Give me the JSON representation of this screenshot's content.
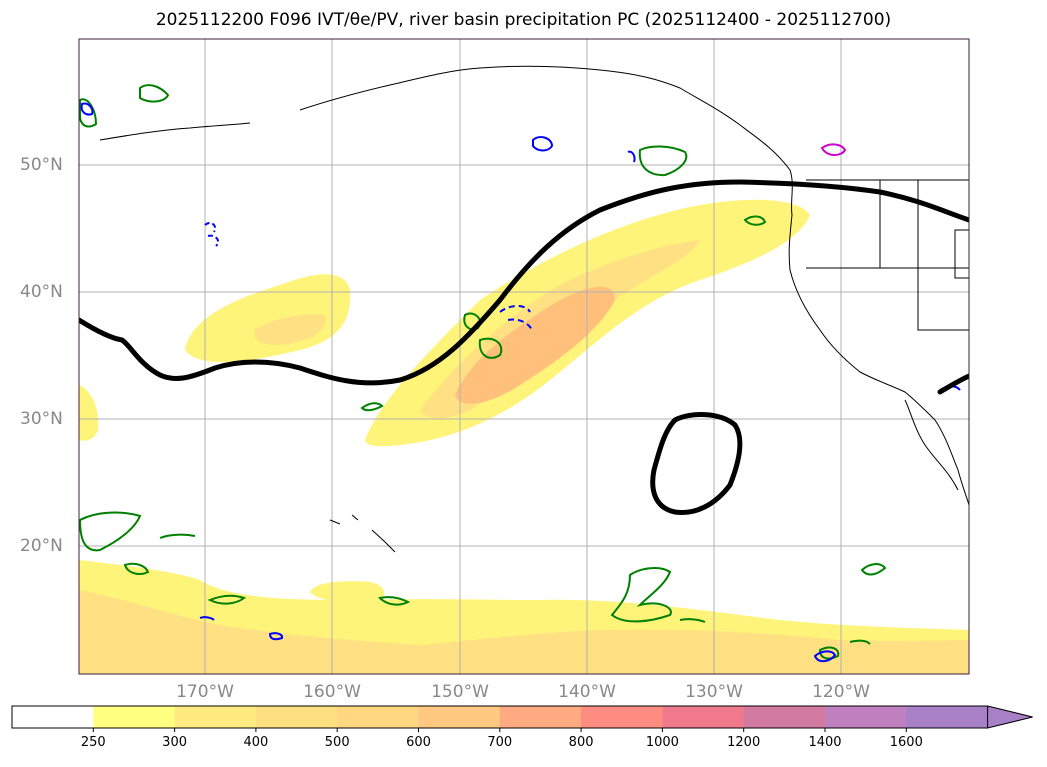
{
  "title": "2025112200 F096 IVT/θe/PV, river basin precipitation PC (2025112400 - 2025112700)",
  "latitude_labels": [
    "50°N",
    "40°N",
    "30°N",
    "20°N"
  ],
  "longitude_labels": [
    "170°W",
    "160°W",
    "150°W",
    "140°W",
    "130°W",
    "120°W"
  ],
  "colorbar": {
    "ticks": [
      "250",
      "300",
      "400",
      "500",
      "600",
      "700",
      "800",
      "1000",
      "1200",
      "1400",
      "1600"
    ],
    "colors": [
      "#ffffff",
      "#ffff80",
      "#ffeb80",
      "#ffe080",
      "#ffd780",
      "#ffc880",
      "#ffaa80",
      "#ff8c80",
      "#f07a8c",
      "#d37aa0",
      "#c080c0",
      "#a880c8"
    ],
    "extend": "max"
  },
  "legend_colors": {
    "ivt_contour": "#000000",
    "green_contour": "#008000",
    "blue_contour": "#0000ff",
    "magenta_contour": "#cc00cc",
    "gridline": "#b0b0b0"
  }
}
